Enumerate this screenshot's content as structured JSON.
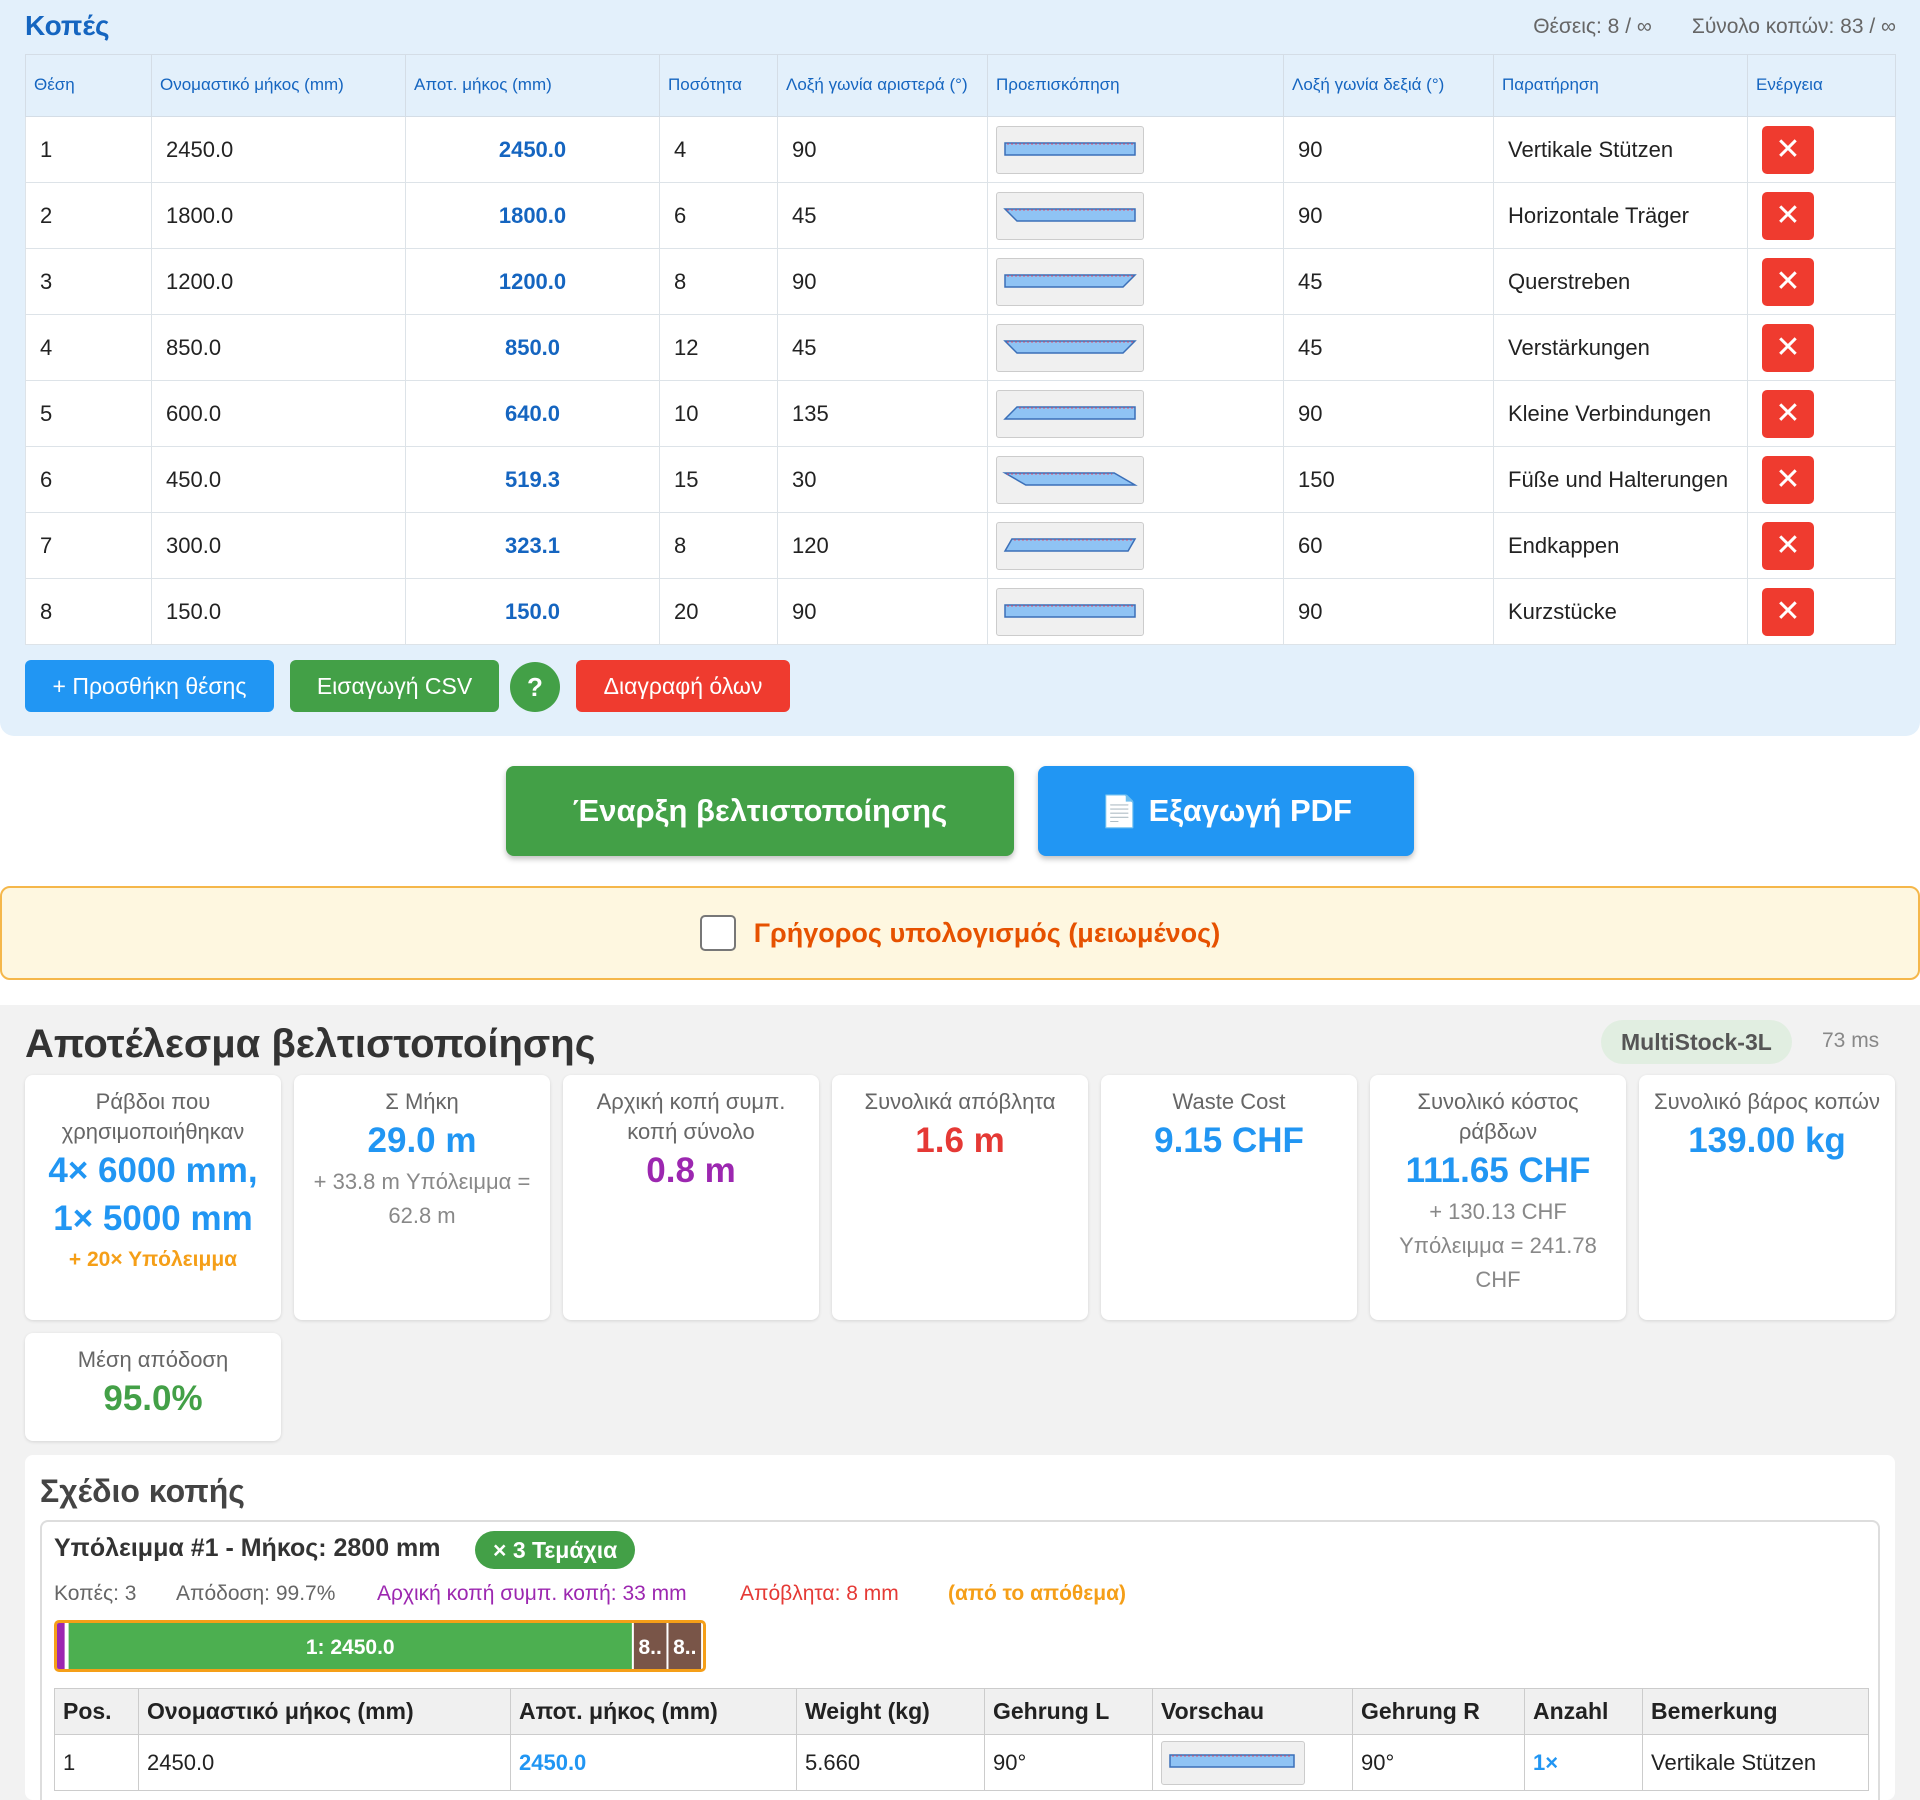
{
  "cuts": {
    "title": "Κοπές",
    "positions_stat": "Θέσεις: 8 / ∞",
    "total_cuts_stat": "Σύνολο κοπών: 83 / ∞",
    "columns": [
      "Θέση",
      "Ονομαστικό μήκος (mm)",
      "Αποτ. μήκος (mm)",
      "Ποσότητα",
      "Λοξή γωνία αριστερά (°)",
      "Προεπισκόπηση",
      "Λοξή γωνία δεξιά (°)",
      "Παρατήρηση",
      "Ενέργεια"
    ],
    "rows": [
      {
        "pos": "1",
        "nominal": "2450.0",
        "effective": "2450.0",
        "qty": "4",
        "left": "90",
        "right": "90",
        "note": "Vertikale Stützen",
        "left_deg": 90,
        "right_deg": 90
      },
      {
        "pos": "2",
        "nominal": "1800.0",
        "effective": "1800.0",
        "qty": "6",
        "left": "45",
        "right": "90",
        "note": "Horizontale Träger",
        "left_deg": 45,
        "right_deg": 90
      },
      {
        "pos": "3",
        "nominal": "1200.0",
        "effective": "1200.0",
        "qty": "8",
        "left": "90",
        "right": "45",
        "note": "Querstreben",
        "left_deg": 90,
        "right_deg": 45
      },
      {
        "pos": "4",
        "nominal": "850.0",
        "effective": "850.0",
        "qty": "12",
        "left": "45",
        "right": "45",
        "note": "Verstärkungen",
        "left_deg": 45,
        "right_deg": 45
      },
      {
        "pos": "5",
        "nominal": "600.0",
        "effective": "640.0",
        "qty": "10",
        "left": "135",
        "right": "90",
        "note": "Kleine Verbindungen",
        "left_deg": 135,
        "right_deg": 90
      },
      {
        "pos": "6",
        "nominal": "450.0",
        "effective": "519.3",
        "qty": "15",
        "left": "30",
        "right": "150",
        "note": "Füße und Halterungen",
        "left_deg": 30,
        "right_deg": 150
      },
      {
        "pos": "7",
        "nominal": "300.0",
        "effective": "323.1",
        "qty": "8",
        "left": "120",
        "right": "60",
        "note": "Endkappen",
        "left_deg": 120,
        "right_deg": 60
      },
      {
        "pos": "8",
        "nominal": "150.0",
        "effective": "150.0",
        "qty": "20",
        "left": "90",
        "right": "90",
        "note": "Kurzstücke",
        "left_deg": 90,
        "right_deg": 90
      }
    ],
    "delete_glyph": "✕",
    "add_button": "+ Προσθήκη θέσης",
    "import_button": "Εισαγωγή CSV",
    "help_button": "?",
    "delete_all_button": "Διαγραφή όλων"
  },
  "actions": {
    "start_button": "Έναρξη βελτιστοποίησης",
    "pdf_icon": "document-icon",
    "pdf_glyph": "📄",
    "pdf_button": "Εξαγωγή PDF",
    "quick_label": "Γρήγορος υπολογισμός (μειωμένος)",
    "quick_checked": false
  },
  "results": {
    "title": "Αποτέλεσμα βελτιστοποίησης",
    "algorithm": "MultiStock-3L",
    "time": "73 ms",
    "cards": {
      "bars_used_label": "Ράβδοι που χρησιμοποιήθηκαν",
      "bars_used_value": "4× 6000 mm, 1× 5000 mm",
      "bars_used_extra": "+ 20× Υπόλειμμα",
      "sum_len_label": "Σ Μήκη",
      "sum_len_value": "29.0 m",
      "sum_len_sub": "+ 33.8 m Υπόλειμμα = 62.8 m",
      "initial_cut_label": "Αρχική κοπή συμπ. κοπή σύνολο",
      "initial_cut_value": "0.8 m",
      "waste_label": "Συνολικά απόβλητα",
      "waste_value": "1.6 m",
      "waste_cost_label": "Waste Cost",
      "waste_cost_value": "9.15 CHF",
      "bar_cost_label": "Συνολικό κόστος ράβδων",
      "bar_cost_value": "111.65 CHF",
      "bar_cost_sub": "+ 130.13 CHF Υπόλειμμα = 241.78 CHF",
      "weight_label": "Συνολικό βάρος κοπών",
      "weight_value": "139.00 kg",
      "efficiency_label": "Μέση απόδοση",
      "efficiency_value": "95.0%"
    },
    "colors": {
      "blue": "#2196f3",
      "purple": "#9c27b0",
      "red": "#e53935",
      "green": "#43a047",
      "orange": "#f59f18"
    }
  },
  "plan": {
    "title": "Σχέδιο κοπής",
    "stock_title": "Υπόλειμμα #1 - Μήκος: 2800 mm",
    "pieces_badge": "× 3 Τεμάχια",
    "stats": {
      "cuts": "Κοπές: 3",
      "efficiency": "Απόδοση: 99.7%",
      "initial_cut": "Αρχική κοπή συμπ. κοπή: 33 mm",
      "waste": "Απόβλητα: 8 mm",
      "from_stock": "(από το απόθεμα)"
    },
    "bar": {
      "stock_length": 2800,
      "initial_mm": 33,
      "segments": [
        {
          "label": "1: 2450.0",
          "length": 2450.0,
          "color": "#4caf50"
        },
        {
          "label": "8..",
          "length": 150.0,
          "color": "#795548"
        },
        {
          "label": "8..",
          "length": 150.0,
          "color": "#795548"
        }
      ]
    },
    "table": {
      "columns": [
        "Pos.",
        "Ονομαστικό μήκος (mm)",
        "Αποτ. μήκος (mm)",
        "Weight (kg)",
        "Gehrung L",
        "Vorschau",
        "Gehrung R",
        "Anzahl",
        "Bemerkung"
      ],
      "rows": [
        {
          "pos": "1",
          "nominal": "2450.0",
          "effective": "2450.0",
          "weight": "5.660",
          "gl": "90°",
          "gr": "90°",
          "count": "1×",
          "note": "Vertikale Stützen",
          "left_deg": 90,
          "right_deg": 90
        }
      ]
    }
  }
}
